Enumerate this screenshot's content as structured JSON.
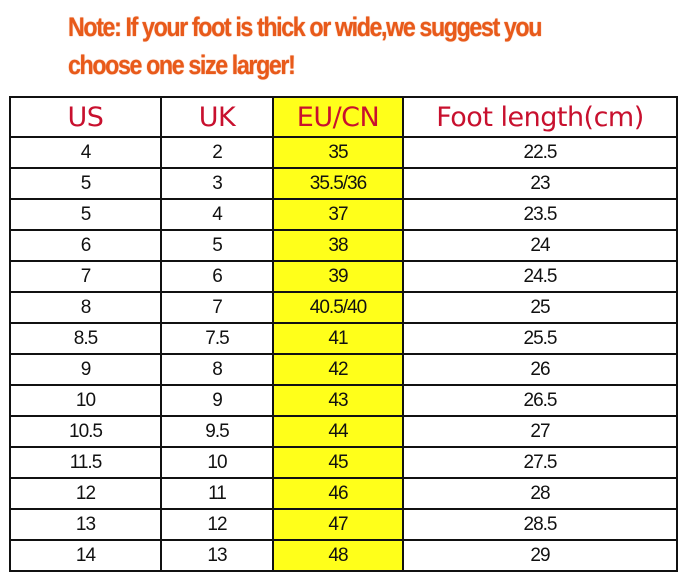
{
  "note": {
    "line1": "Note: If your foot is thick or wide,we suggest you",
    "line2": "choose one size larger!",
    "color": "#e85a1a"
  },
  "table": {
    "headers": [
      "US",
      "UK",
      "EU/CN",
      "Foot length(cm)"
    ],
    "header_color": "#c8102e",
    "highlight_color": "#ffff1a",
    "rows": [
      [
        "4",
        "2",
        "35",
        "22.5"
      ],
      [
        "5",
        "3",
        "35.5/36",
        "23"
      ],
      [
        "5",
        "4",
        "37",
        "23.5"
      ],
      [
        "6",
        "5",
        "38",
        "24"
      ],
      [
        "7",
        "6",
        "39",
        "24.5"
      ],
      [
        "8",
        "7",
        "40.5/40",
        "25"
      ],
      [
        "8.5",
        "7.5",
        "41",
        "25.5"
      ],
      [
        "9",
        "8",
        "42",
        "26"
      ],
      [
        "10",
        "9",
        "43",
        "26.5"
      ],
      [
        "10.5",
        "9.5",
        "44",
        "27"
      ],
      [
        "11.5",
        "10",
        "45",
        "27.5"
      ],
      [
        "12",
        "11",
        "46",
        "28"
      ],
      [
        "13",
        "12",
        "47",
        "28.5"
      ],
      [
        "14",
        "13",
        "48",
        "29"
      ]
    ]
  }
}
